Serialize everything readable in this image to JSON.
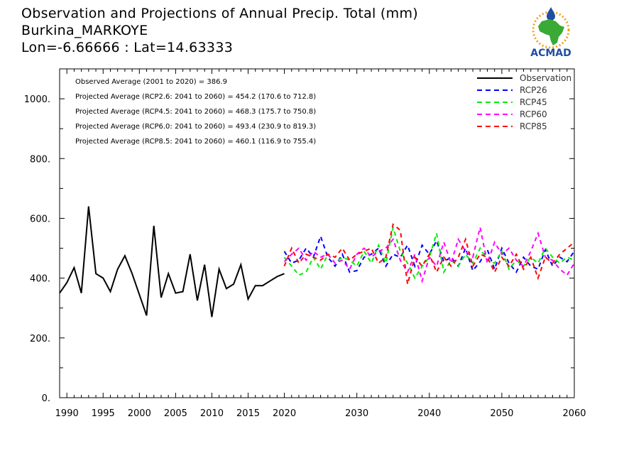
{
  "header": {
    "line1": "Observation and Projections of Annual Precip. Total (mm)",
    "line2": "Burkina_MARKOYE",
    "line3": "Lon=-6.66666 : Lat=14.63333"
  },
  "logo": {
    "text": "ACMAD",
    "icon": "africa-map-sun-logo"
  },
  "colors": {
    "observation": "#000000",
    "rcp26": "#0000ff",
    "rcp45": "#00ee00",
    "rcp60": "#ff00ff",
    "rcp85": "#ff0000",
    "logo_blue": "#1e4fa3",
    "logo_green": "#3aa935",
    "logo_orange": "#f0a020"
  },
  "chart_data": {
    "type": "line",
    "title": "Observation and Projections of Annual Precip. Total (mm)",
    "xlabel": "",
    "ylabel": "",
    "xlim": [
      1989,
      2060
    ],
    "ylim": [
      0,
      1100
    ],
    "grid": false,
    "legend_position": "top-right",
    "yticks": [
      "0.",
      "200.",
      "400.",
      "600.",
      "800.",
      "1000."
    ],
    "ytick_values": [
      0,
      200,
      400,
      600,
      800,
      1000
    ],
    "xticks_obs": [
      "1990",
      "1995",
      "2000",
      "2005",
      "2010",
      "2015",
      "2020"
    ],
    "xticks_obs_values": [
      1990,
      1995,
      2000,
      2005,
      2010,
      2015,
      2020
    ],
    "xticks_proj": [
      "2030",
      "2040",
      "2050",
      "2060"
    ],
    "xticks_proj_values": [
      2030,
      2040,
      2050,
      2060
    ],
    "annotations": [
      "Observed Average (2001 to 2020) = 386.9",
      "Projected Average (RCP2.6: 2041 to 2060) = 454.2 (170.6 to 712.8)",
      "Projected Average (RCP4.5: 2041 to 2060) = 468.3 (175.7 to 750.8)",
      "Projected Average (RCP6.0: 2041 to 2060) = 493.4 (230.9 to 819.3)",
      "Projected Average (RCP8.5: 2041 to 2060) = 460.1 (116.9 to 755.4)"
    ],
    "series": [
      {
        "name": "Observation",
        "style": "solid",
        "x": [
          1989,
          1990,
          1991,
          1992,
          1993,
          1994,
          1995,
          1996,
          1997,
          1998,
          1999,
          2000,
          2001,
          2002,
          2003,
          2004,
          2005,
          2006,
          2007,
          2008,
          2009,
          2010,
          2011,
          2012,
          2013,
          2014,
          2015,
          2016,
          2017,
          2018,
          2019,
          2020
        ],
        "values": [
          350,
          385,
          435,
          350,
          640,
          415,
          400,
          355,
          430,
          475,
          415,
          345,
          275,
          575,
          335,
          415,
          350,
          355,
          480,
          325,
          445,
          270,
          430,
          365,
          380,
          445,
          330,
          375,
          375,
          390,
          405,
          415
        ]
      },
      {
        "name": "RCP26",
        "style": "dashed",
        "x": [
          2020,
          2021,
          2022,
          2023,
          2024,
          2025,
          2026,
          2027,
          2028,
          2029,
          2030,
          2031,
          2032,
          2033,
          2034,
          2035,
          2036,
          2037,
          2038,
          2039,
          2040,
          2041,
          2042,
          2043,
          2044,
          2045,
          2046,
          2047,
          2048,
          2049,
          2050,
          2051,
          2052,
          2053,
          2054,
          2055,
          2056,
          2057,
          2058,
          2059,
          2060
        ],
        "values": [
          490,
          450,
          460,
          500,
          470,
          540,
          470,
          440,
          480,
          420,
          425,
          470,
          480,
          500,
          440,
          480,
          470,
          510,
          440,
          510,
          480,
          525,
          455,
          470,
          440,
          500,
          425,
          455,
          495,
          430,
          500,
          450,
          420,
          470,
          440,
          430,
          495,
          440,
          470,
          455,
          490
        ]
      },
      {
        "name": "RCP45",
        "style": "dashed",
        "x": [
          2020,
          2021,
          2022,
          2023,
          2024,
          2025,
          2026,
          2027,
          2028,
          2029,
          2030,
          2031,
          2032,
          2033,
          2034,
          2035,
          2036,
          2037,
          2038,
          2039,
          2040,
          2041,
          2042,
          2043,
          2044,
          2045,
          2046,
          2047,
          2048,
          2049,
          2050,
          2051,
          2052,
          2053,
          2054,
          2055,
          2056,
          2057,
          2058,
          2059,
          2060
        ],
        "values": [
          470,
          440,
          410,
          420,
          470,
          430,
          480,
          450,
          470,
          460,
          440,
          490,
          450,
          510,
          450,
          570,
          490,
          450,
          400,
          440,
          470,
          550,
          420,
          460,
          440,
          480,
          450,
          500,
          460,
          450,
          490,
          430,
          460,
          440,
          470,
          450,
          500,
          470,
          450,
          470,
          460
        ]
      },
      {
        "name": "RCP60",
        "style": "dashed",
        "x": [
          2020,
          2021,
          2022,
          2023,
          2024,
          2025,
          2026,
          2027,
          2028,
          2029,
          2030,
          2031,
          2032,
          2033,
          2034,
          2035,
          2036,
          2037,
          2038,
          2039,
          2040,
          2041,
          2042,
          2043,
          2044,
          2045,
          2046,
          2047,
          2048,
          2049,
          2050,
          2051,
          2052,
          2053,
          2054,
          2055,
          2056,
          2057,
          2058,
          2059,
          2060
        ],
        "values": [
          455,
          480,
          500,
          460,
          490,
          470,
          480,
          450,
          460,
          430,
          480,
          500,
          470,
          490,
          500,
          530,
          460,
          420,
          480,
          390,
          470,
          440,
          520,
          450,
          530,
          490,
          470,
          570,
          450,
          520,
          480,
          500,
          460,
          440,
          490,
          550,
          470,
          460,
          430,
          410,
          450
        ]
      },
      {
        "name": "RCP85",
        "style": "dashed",
        "x": [
          2020,
          2021,
          2022,
          2023,
          2024,
          2025,
          2026,
          2027,
          2028,
          2029,
          2030,
          2031,
          2032,
          2033,
          2034,
          2035,
          2036,
          2037,
          2038,
          2039,
          2040,
          2041,
          2042,
          2043,
          2044,
          2045,
          2046,
          2047,
          2048,
          2049,
          2050,
          2051,
          2052,
          2053,
          2054,
          2055,
          2056,
          2057,
          2058,
          2059,
          2060
        ],
        "values": [
          440,
          500,
          450,
          480,
          470,
          460,
          480,
          470,
          500,
          460,
          480,
          490,
          500,
          450,
          470,
          580,
          560,
          380,
          470,
          440,
          480,
          420,
          470,
          440,
          470,
          530,
          440,
          480,
          470,
          420,
          470,
          440,
          480,
          430,
          470,
          400,
          470,
          450,
          480,
          500,
          520
        ]
      }
    ]
  }
}
